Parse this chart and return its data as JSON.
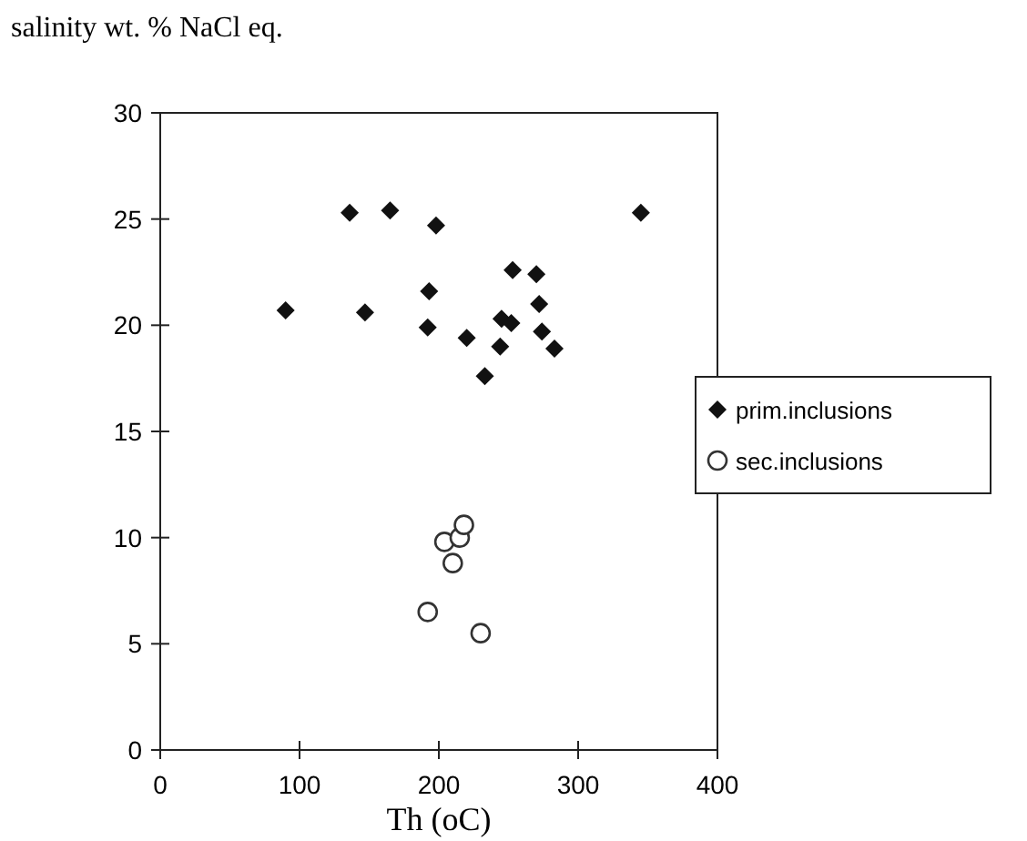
{
  "chart_data": {
    "type": "scatter",
    "ylabel": "salinity  wt. % NaCl eq.",
    "xlabel": "Th (oC)",
    "xlim": [
      0,
      400
    ],
    "xticks": [
      0,
      100,
      200,
      300,
      400
    ],
    "ylim": [
      0,
      30
    ],
    "yticks": [
      0,
      5,
      10,
      15,
      20,
      25,
      30
    ],
    "grid": false,
    "legend": "right",
    "series": [
      {
        "name": "prim.inclusions",
        "color": "#111111",
        "marker": "diamond",
        "x": [
          90,
          136,
          147,
          165,
          198,
          193,
          192,
          220,
          233,
          244,
          245,
          252,
          253,
          270,
          272,
          274,
          283,
          345
        ],
        "values": [
          20.7,
          25.3,
          20.6,
          25.4,
          24.7,
          21.6,
          19.9,
          19.4,
          17.6,
          19.0,
          20.3,
          20.1,
          22.6,
          22.4,
          21.0,
          19.7,
          18.9,
          25.3
        ]
      },
      {
        "name": "sec.inclusions",
        "color": "#333333",
        "marker": "circle",
        "x": [
          204,
          215,
          218,
          210,
          192,
          230
        ],
        "values": [
          9.8,
          10.0,
          10.6,
          8.8,
          6.5,
          5.5
        ]
      }
    ]
  }
}
